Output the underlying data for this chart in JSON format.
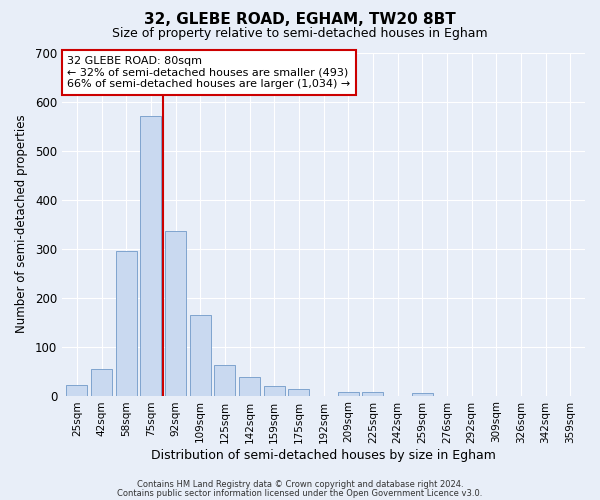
{
  "title": "32, GLEBE ROAD, EGHAM, TW20 8BT",
  "subtitle": "Size of property relative to semi-detached houses in Egham",
  "xlabel": "Distribution of semi-detached houses by size in Egham",
  "ylabel": "Number of semi-detached properties",
  "bar_labels": [
    "25sqm",
    "42sqm",
    "58sqm",
    "75sqm",
    "92sqm",
    "109sqm",
    "125sqm",
    "142sqm",
    "159sqm",
    "175sqm",
    "192sqm",
    "209sqm",
    "225sqm",
    "242sqm",
    "259sqm",
    "276sqm",
    "292sqm",
    "309sqm",
    "326sqm",
    "342sqm",
    "359sqm"
  ],
  "bar_values": [
    22,
    55,
    295,
    570,
    335,
    165,
    62,
    37,
    20,
    14,
    0,
    7,
    8,
    0,
    5,
    0,
    0,
    0,
    0,
    0,
    0
  ],
  "bar_color": "#c9d9f0",
  "bar_edge_color": "#7099c8",
  "property_line_color": "#cc0000",
  "ylim": [
    0,
    700
  ],
  "yticks": [
    0,
    100,
    200,
    300,
    400,
    500,
    600,
    700
  ],
  "annotation_title": "32 GLEBE ROAD: 80sqm",
  "annotation_line1": "← 32% of semi-detached houses are smaller (493)",
  "annotation_line2": "66% of semi-detached houses are larger (1,034) →",
  "annotation_box_facecolor": "#ffffff",
  "annotation_box_edgecolor": "#cc0000",
  "footer1": "Contains HM Land Registry data © Crown copyright and database right 2024.",
  "footer2": "Contains public sector information licensed under the Open Government Licence v3.0.",
  "bg_color": "#e8eef8",
  "grid_color": "#ffffff"
}
